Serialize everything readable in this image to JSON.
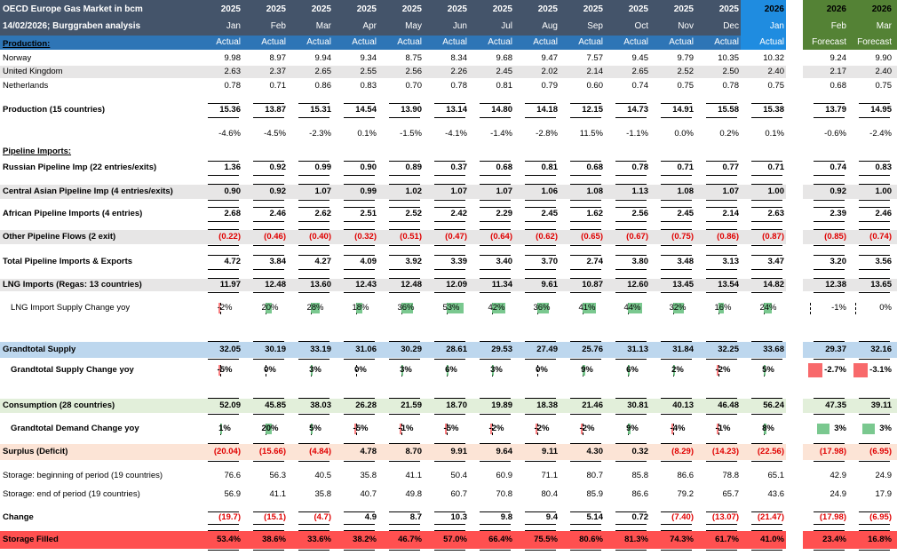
{
  "title": {
    "line1": "OECD Europe Gas Market in bcm",
    "line2": "14/02/2026; Burggraben analysis"
  },
  "colors": {
    "header_dark": "#44546a",
    "header_blue": "#2e75b6",
    "jan26_blue": "#1f8ce0",
    "forecast_green": "#548235",
    "row_grey": "#e7e6e6",
    "row_blue": "#bdd7ee",
    "row_green": "#e2efda",
    "row_salmon": "#fce4d6",
    "row_red": "#ff5050",
    "neg_red": "#e00000",
    "bar_green": "#63be7b",
    "bar_red": "#f8696b"
  },
  "columns": [
    {
      "year": "2025",
      "month": "Jan",
      "kind": "Actual"
    },
    {
      "year": "2025",
      "month": "Feb",
      "kind": "Actual"
    },
    {
      "year": "2025",
      "month": "Mar",
      "kind": "Actual"
    },
    {
      "year": "2025",
      "month": "Apr",
      "kind": "Actual"
    },
    {
      "year": "2025",
      "month": "May",
      "kind": "Actual"
    },
    {
      "year": "2025",
      "month": "Jun",
      "kind": "Actual"
    },
    {
      "year": "2025",
      "month": "Jul",
      "kind": "Actual"
    },
    {
      "year": "2025",
      "month": "Aug",
      "kind": "Actual"
    },
    {
      "year": "2025",
      "month": "Sep",
      "kind": "Actual"
    },
    {
      "year": "2025",
      "month": "Oct",
      "kind": "Actual"
    },
    {
      "year": "2025",
      "month": "Nov",
      "kind": "Actual"
    },
    {
      "year": "2025",
      "month": "Dec",
      "kind": "Actual"
    },
    {
      "year": "2026",
      "month": "Jan",
      "kind": "Actual"
    },
    {
      "year": "2026",
      "month": "Feb",
      "kind": "Forecast"
    },
    {
      "year": "2026",
      "month": "Mar",
      "kind": "Forecast"
    }
  ],
  "rows": [
    {
      "label": "Production:",
      "type": "section"
    },
    {
      "label": "Norway",
      "values": [
        "9.98",
        "8.97",
        "9.94",
        "9.34",
        "8.75",
        "8.34",
        "9.68",
        "9.47",
        "7.57",
        "9.45",
        "9.79",
        "10.35",
        "10.32",
        "9.24",
        "9.90"
      ]
    },
    {
      "label": "United Kingdom",
      "band": "grey",
      "values": [
        "2.63",
        "2.37",
        "2.65",
        "2.55",
        "2.56",
        "2.26",
        "2.45",
        "2.02",
        "2.14",
        "2.65",
        "2.52",
        "2.50",
        "2.40",
        "2.17",
        "2.40"
      ]
    },
    {
      "label": "Netherlands",
      "values": [
        "0.78",
        "0.71",
        "0.86",
        "0.83",
        "0.70",
        "0.78",
        "0.81",
        "0.79",
        "0.60",
        "0.74",
        "0.75",
        "0.78",
        "0.75",
        "0.68",
        "0.75"
      ]
    },
    {
      "label": "Production (15 countries)",
      "bold": true,
      "lines": true,
      "values": [
        "15.36",
        "13.87",
        "15.31",
        "14.54",
        "13.90",
        "13.14",
        "14.80",
        "14.18",
        "12.15",
        "14.73",
        "14.91",
        "15.58",
        "15.38",
        "13.79",
        "14.95"
      ]
    },
    {
      "label": "",
      "values": [
        "-4.6%",
        "-4.5%",
        "-2.3%",
        "0.1%",
        "-1.5%",
        "-4.1%",
        "-1.4%",
        "-2.8%",
        "11.5%",
        "-1.1%",
        "0.0%",
        "0.2%",
        "0.1%",
        "-0.6%",
        "-2.4%"
      ]
    },
    {
      "label": "Pipeline Imports:",
      "type": "section"
    },
    {
      "label": "Russian Pipeline Imp (22 entries/exits)",
      "bold": true,
      "lines": true,
      "values": [
        "1.36",
        "0.92",
        "0.99",
        "0.90",
        "0.89",
        "0.37",
        "0.68",
        "0.81",
        "0.68",
        "0.78",
        "0.71",
        "0.77",
        "0.71",
        "0.74",
        "0.83"
      ]
    },
    {
      "label": "Central Asian Pipeline Imp (4 entries/exits)",
      "bold": true,
      "band": "grey",
      "lines": true,
      "values": [
        "0.90",
        "0.92",
        "1.07",
        "0.99",
        "1.02",
        "1.07",
        "1.07",
        "1.06",
        "1.08",
        "1.13",
        "1.08",
        "1.07",
        "1.00",
        "0.92",
        "1.00"
      ]
    },
    {
      "label": "African Pipeline Imports (4 entries)",
      "bold": true,
      "lines": true,
      "values": [
        "2.68",
        "2.46",
        "2.62",
        "2.51",
        "2.52",
        "2.42",
        "2.29",
        "2.45",
        "1.62",
        "2.56",
        "2.45",
        "2.14",
        "2.63",
        "2.39",
        "2.46"
      ]
    },
    {
      "label": "Other Pipeline Flows (2 exit)",
      "bold": true,
      "band": "grey",
      "lines": true,
      "values": [
        "(0.22)",
        "(0.46)",
        "(0.40)",
        "(0.32)",
        "(0.51)",
        "(0.47)",
        "(0.64)",
        "(0.62)",
        "(0.65)",
        "(0.67)",
        "(0.75)",
        "(0.86)",
        "(0.87)",
        "(0.85)",
        "(0.74)"
      ]
    },
    {
      "label": "Total Pipeline Imports & Exports",
      "bold": true,
      "lines": true,
      "values": [
        "4.72",
        "3.84",
        "4.27",
        "4.09",
        "3.92",
        "3.39",
        "3.40",
        "3.70",
        "2.74",
        "3.80",
        "3.48",
        "3.13",
        "3.47",
        "3.20",
        "3.56"
      ]
    },
    {
      "label": "LNG Imports (Regas: 13 countries)",
      "bold": true,
      "band": "grey",
      "lines": true,
      "values": [
        "11.97",
        "12.48",
        "13.60",
        "12.43",
        "12.48",
        "12.09",
        "11.34",
        "9.61",
        "10.87",
        "12.60",
        "13.45",
        "13.54",
        "14.82",
        "12.38",
        "13.65"
      ]
    },
    {
      "label": "LNG Import Supply Change yoy",
      "type": "bars",
      "indent": true,
      "values": [
        "-2%",
        "20%",
        "28%",
        "18%",
        "36%",
        "53%",
        "42%",
        "36%",
        "41%",
        "44%",
        "32%",
        "16%",
        "24%",
        "-1%",
        "0%"
      ],
      "pct": [
        -2,
        20,
        28,
        18,
        36,
        53,
        42,
        36,
        41,
        44,
        32,
        16,
        24,
        -1,
        0
      ]
    },
    {
      "label": "Grandtotal Supply",
      "bold": true,
      "band": "blue",
      "lines": true,
      "values": [
        "32.05",
        "30.19",
        "33.19",
        "31.06",
        "30.29",
        "28.61",
        "29.53",
        "27.49",
        "25.76",
        "31.13",
        "31.84",
        "32.25",
        "33.68",
        "29.37",
        "32.16"
      ]
    },
    {
      "label": "Grandtotal Supply Change yoy",
      "type": "bars",
      "indent": true,
      "bold": true,
      "values": [
        "-5%",
        "0%",
        "3%",
        "0%",
        "3%",
        "6%",
        "3%",
        "0%",
        "9%",
        "6%",
        "2%",
        "-2%",
        "5%",
        "-2.7%",
        "-3.1%"
      ],
      "pct": [
        -5,
        0,
        3,
        0,
        3,
        6,
        3,
        0,
        9,
        6,
        2,
        -2,
        5,
        -2.7,
        -3.1
      ]
    },
    {
      "label": "Consumption (28 countries)",
      "bold": true,
      "band": "green",
      "lines": true,
      "values": [
        "52.09",
        "45.85",
        "38.03",
        "26.28",
        "21.59",
        "18.70",
        "19.89",
        "18.38",
        "21.46",
        "30.81",
        "40.13",
        "46.48",
        "56.24",
        "47.35",
        "39.11"
      ]
    },
    {
      "label": "Grandtotal Demand Change yoy",
      "type": "bars",
      "indent": true,
      "bold": true,
      "values": [
        "1%",
        "20%",
        "5%",
        "-5%",
        "-1%",
        "-5%",
        "-2%",
        "-2%",
        "-2%",
        "9%",
        "-4%",
        "-1%",
        "8%",
        "3%",
        "3%"
      ],
      "pct": [
        1,
        20,
        5,
        -5,
        -1,
        -5,
        -2,
        -2,
        -2,
        9,
        -4,
        -1,
        8,
        3,
        3
      ]
    },
    {
      "label": "Surplus (Deficit)",
      "bold": true,
      "band": "salmon",
      "lines": true,
      "values": [
        "(20.04)",
        "(15.66)",
        "(4.84)",
        "4.78",
        "8.70",
        "9.91",
        "9.64",
        "9.11",
        "4.30",
        "0.32",
        "(8.29)",
        "(14.23)",
        "(22.56)",
        "(17.98)",
        "(6.95)"
      ]
    },
    {
      "label": "Storage: beginning of period (19 countries)",
      "values": [
        "76.6",
        "56.3",
        "40.5",
        "35.8",
        "41.1",
        "50.4",
        "60.9",
        "71.1",
        "80.7",
        "85.8",
        "86.6",
        "78.8",
        "65.1",
        "42.9",
        "24.9"
      ]
    },
    {
      "label": "Storage: end of period (19 countries)",
      "values": [
        "56.9",
        "41.1",
        "35.8",
        "40.7",
        "49.8",
        "60.7",
        "70.8",
        "80.4",
        "85.9",
        "86.6",
        "79.2",
        "65.7",
        "43.6",
        "24.9",
        "17.9"
      ]
    },
    {
      "label": "Change",
      "bold": true,
      "lines": true,
      "values": [
        "(19.7)",
        "(15.1)",
        "(4.7)",
        "4.9",
        "8.7",
        "10.3",
        "9.8",
        "9.4",
        "5.14",
        "0.72",
        "(7.40)",
        "(13.07)",
        "(21.47)",
        "(17.98)",
        "(6.95)"
      ]
    },
    {
      "label": "Storage Filled",
      "bold": true,
      "band": "red",
      "lines": true,
      "values": [
        "53.4%",
        "38.6%",
        "33.6%",
        "38.2%",
        "46.7%",
        "57.0%",
        "66.4%",
        "75.5%",
        "80.6%",
        "81.3%",
        "74.3%",
        "61.7%",
        "41.0%",
        "23.4%",
        "16.8%"
      ]
    }
  ]
}
